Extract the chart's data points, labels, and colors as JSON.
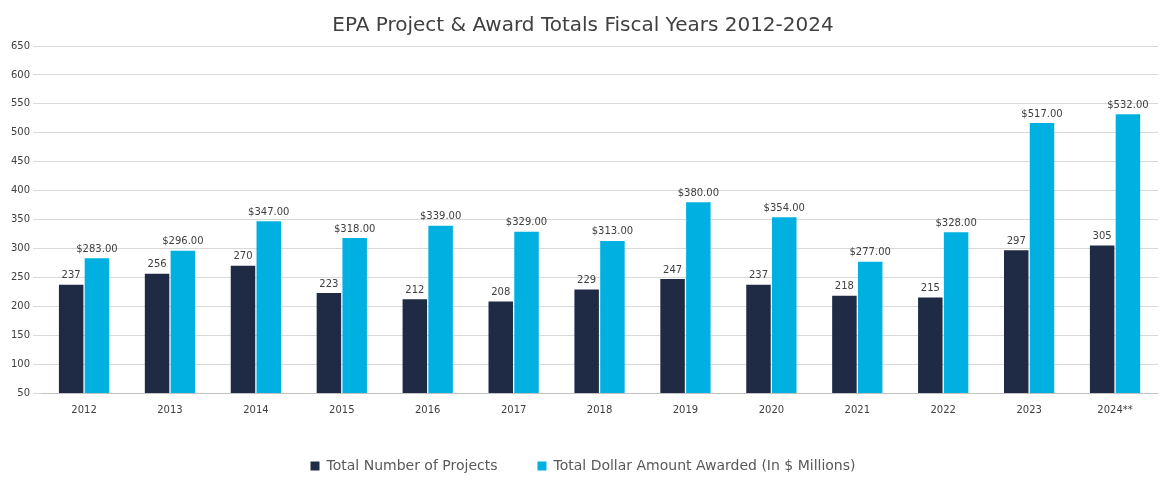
{
  "chart_data": {
    "type": "bar",
    "title": "EPA Project & Award Totals Fiscal Years 2012-2024",
    "categories": [
      "2012",
      "2013",
      "2014",
      "2015",
      "2016",
      "2017",
      "2018",
      "2019",
      "2020",
      "2021",
      "2022",
      "2023",
      "2024**"
    ],
    "series": [
      {
        "name": "Total Number of Projects",
        "color": "#1f2a44",
        "values": [
          237,
          256,
          270,
          223,
          212,
          208,
          229,
          247,
          237,
          218,
          215,
          297,
          305
        ],
        "value_labels": [
          "237",
          "256",
          "270",
          "223",
          "212",
          "208",
          "229",
          "247",
          "237",
          "218",
          "215",
          "297",
          "305"
        ]
      },
      {
        "name": "Total Dollar Amount Awarded (In $ Millions)",
        "color": "#00b0e0",
        "values": [
          283,
          296,
          347,
          318,
          339,
          329,
          313,
          380,
          354,
          277,
          328,
          517,
          532
        ],
        "value_labels": [
          "$283.00",
          "$296.00",
          "$347.00",
          "$318.00",
          "$339.00",
          "$329.00",
          "$313.00",
          "$380.00",
          "$354.00",
          "$277.00",
          "$328.00",
          "$517.00",
          "$532.00"
        ]
      }
    ],
    "ylim": [
      50,
      650
    ],
    "yticks": [
      50,
      100,
      150,
      200,
      250,
      300,
      350,
      400,
      450,
      500,
      550,
      600,
      650
    ],
    "grid": "y",
    "legend": "bottom"
  }
}
